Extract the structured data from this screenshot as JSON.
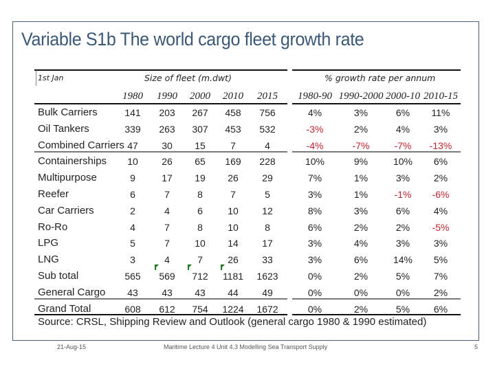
{
  "slide": {
    "title": "Variable S1b The world cargo fleet growth rate",
    "footer": {
      "date": "21-Aug-15",
      "center": "Maritime Lecture 4 Unit 4.3 Modelling Sea Transport Supply",
      "page_number": "5"
    }
  },
  "table": {
    "row_header_label": "1st Jan",
    "size_group_label": "Size of fleet (m.dwt)",
    "growth_group_label": "% growth rate per annum",
    "size_columns": [
      "1980",
      "1990",
      "2000",
      "2010",
      "2015"
    ],
    "growth_columns": [
      "1980-90",
      "1990-2000",
      "2000-10",
      "2010-15"
    ],
    "rows": [
      {
        "label": "Bulk Carriers",
        "size": [
          "141",
          "203",
          "267",
          "458",
          "756"
        ],
        "growth": [
          "4%",
          "3%",
          "6%",
          "11%"
        ]
      },
      {
        "label": "Oil Tankers",
        "size": [
          "339",
          "263",
          "307",
          "453",
          "532"
        ],
        "growth": [
          "-3%",
          "2%",
          "4%",
          "3%"
        ]
      },
      {
        "label": "Combined Carriers",
        "size": [
          "47",
          "30",
          "15",
          "7",
          "4"
        ],
        "growth": [
          "-4%",
          "-7%",
          "-7%",
          "-13%"
        ]
      },
      {
        "label": "Containerships",
        "size": [
          "10",
          "26",
          "65",
          "169",
          "228"
        ],
        "growth": [
          "10%",
          "9%",
          "10%",
          "6%"
        ]
      },
      {
        "label": "Multipurpose",
        "size": [
          "9",
          "17",
          "19",
          "26",
          "29"
        ],
        "growth": [
          "7%",
          "1%",
          "3%",
          "2%"
        ]
      },
      {
        "label": "Reefer",
        "size": [
          "6",
          "7",
          "8",
          "7",
          "5"
        ],
        "growth": [
          "3%",
          "1%",
          "-1%",
          "-6%"
        ]
      },
      {
        "label": "Car Carriers",
        "size": [
          "2",
          "4",
          "6",
          "10",
          "12"
        ],
        "growth": [
          "8%",
          "3%",
          "6%",
          "4%"
        ]
      },
      {
        "label": "Ro-Ro",
        "size": [
          "4",
          "7",
          "8",
          "10",
          "8"
        ],
        "growth": [
          "6%",
          "2%",
          "2%",
          "-5%"
        ]
      },
      {
        "label": "LPG",
        "size": [
          "5",
          "7",
          "10",
          "14",
          "17"
        ],
        "growth": [
          "3%",
          "4%",
          "3%",
          "3%"
        ]
      },
      {
        "label": "LNG",
        "size": [
          "3",
          "4",
          "7",
          "26",
          "33"
        ],
        "growth": [
          "3%",
          "6%",
          "14%",
          "5%"
        ]
      },
      {
        "label": "Sub total",
        "size": [
          "565",
          "569",
          "712",
          "1181",
          "1623"
        ],
        "growth": [
          "0%",
          "2%",
          "5%",
          "7%"
        ]
      },
      {
        "label": "General Cargo",
        "size": [
          "43",
          "43",
          "43",
          "44",
          "49"
        ],
        "growth": [
          "0%",
          "0%",
          "0%",
          "2%"
        ]
      },
      {
        "label": "Grand Total",
        "size": [
          "608",
          "612",
          "754",
          "1224",
          "1672"
        ],
        "growth": [
          "0%",
          "2%",
          "5%",
          "6%"
        ]
      }
    ],
    "source": "Source: CRSL,  Shipping Review and Outlook (general cargo 1980 & 1990 estimated)"
  },
  "colors": {
    "title": "#3b5877",
    "negative": "#c0242e",
    "error_marker": "#1d7a1d"
  }
}
